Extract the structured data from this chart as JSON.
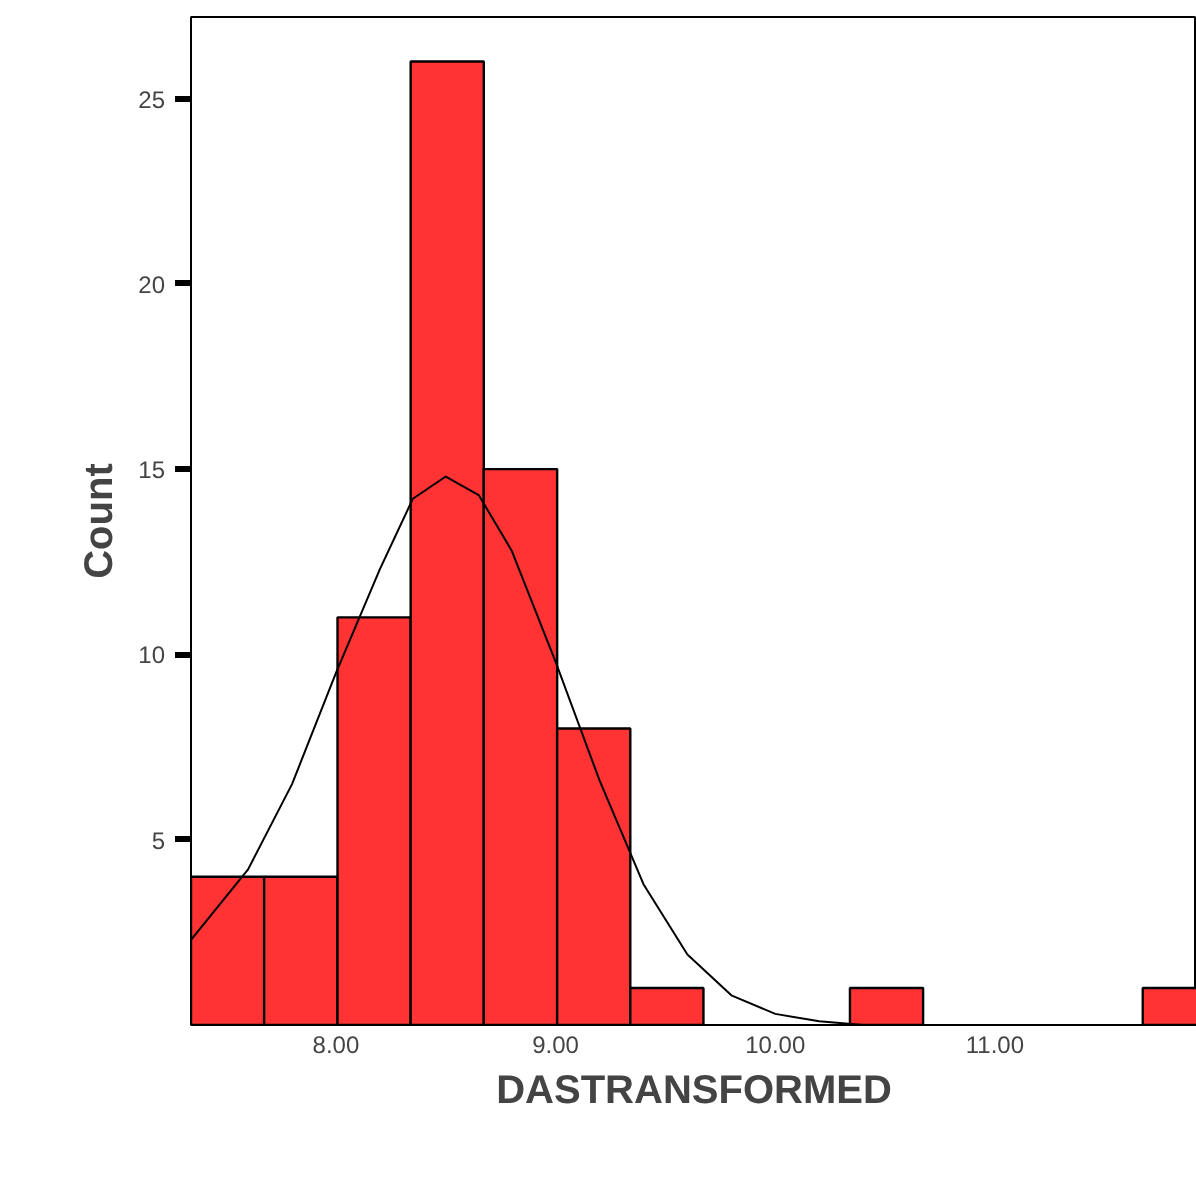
{
  "chart_data": {
    "type": "histogram",
    "xlabel": "DASTRANSFORMED",
    "ylabel": "Count",
    "xlim": [
      7.34,
      11.92
    ],
    "ylim": [
      0,
      27.2
    ],
    "xticks": [
      {
        "value": 8,
        "label": "8.00"
      },
      {
        "value": 9,
        "label": "9.00"
      },
      {
        "value": 10,
        "label": "10.00"
      },
      {
        "value": 11,
        "label": "11.00"
      }
    ],
    "yticks": [
      5,
      10,
      15,
      20,
      25
    ],
    "grid": false,
    "series": [
      {
        "color": "#ff3333",
        "bins": [
          7.34,
          7.673,
          8.007,
          8.34,
          8.673,
          9.007,
          9.34,
          9.673,
          10.007,
          10.34,
          10.673,
          11.007,
          11.34,
          11.673,
          12.007
        ],
        "values": [
          4,
          4,
          11,
          26,
          15,
          8,
          1,
          0,
          0,
          1,
          0,
          0,
          0,
          1
        ]
      },
      {
        "type": "line",
        "color": "#000000",
        "x": [
          7.34,
          7.6,
          7.8,
          8.0,
          8.2,
          8.35,
          8.5,
          8.65,
          8.8,
          9.0,
          9.2,
          9.4,
          9.6,
          9.8,
          10.0,
          10.2,
          10.4,
          11.0,
          11.92
        ],
        "values": [
          2.3,
          4.2,
          6.5,
          9.5,
          12.3,
          14.2,
          14.8,
          14.3,
          12.8,
          9.8,
          6.6,
          3.8,
          1.9,
          0.8,
          0.3,
          0.1,
          0.0,
          0.0,
          0.0
        ]
      }
    ]
  }
}
